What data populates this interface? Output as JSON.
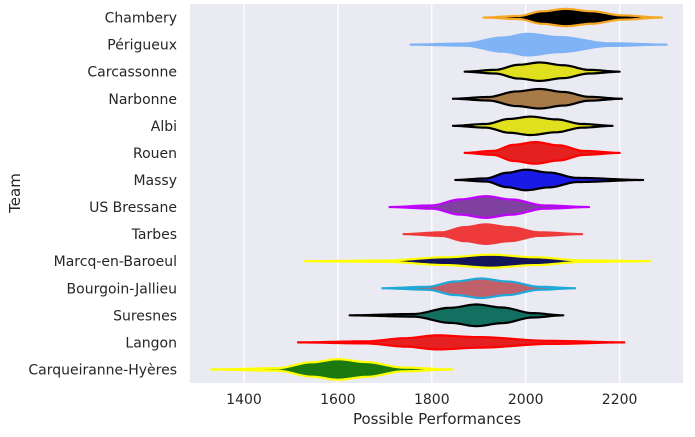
{
  "chart_data": {
    "type": "violin",
    "orientation": "horizontal",
    "xlabel": "Possible Performances",
    "ylabel": "Team",
    "xlim": [
      1285,
      2335
    ],
    "xticks": [
      1400,
      1600,
      1800,
      2000,
      2200
    ],
    "grid": true,
    "background": "#eaeaf2",
    "series": [
      {
        "name": "Chambery",
        "min": 1910,
        "max": 2290,
        "peak": 2085,
        "halfwidth": 0.32,
        "fill": "#000000",
        "edge": "#f5a623",
        "shape": [
          [
            1910,
            0
          ],
          [
            1985,
            0.18
          ],
          [
            2035,
            0.72
          ],
          [
            2085,
            1
          ],
          [
            2140,
            0.72
          ],
          [
            2205,
            0.25
          ],
          [
            2290,
            0
          ]
        ]
      },
      {
        "name": "Périgueux",
        "min": 1755,
        "max": 2300,
        "peak": 2005,
        "halfwidth": 0.4,
        "fill": "#7fb3f5",
        "edge": "#7fb3f5",
        "shape": [
          [
            1755,
            0
          ],
          [
            1870,
            0.1
          ],
          [
            1950,
            0.65
          ],
          [
            2005,
            1
          ],
          [
            2070,
            0.7
          ],
          [
            2180,
            0.12
          ],
          [
            2300,
            0
          ]
        ]
      },
      {
        "name": "Carcassonne",
        "min": 1870,
        "max": 2200,
        "peak": 2030,
        "halfwidth": 0.34,
        "fill": "#e0e01e",
        "edge": "#000000",
        "shape": [
          [
            1870,
            0
          ],
          [
            1935,
            0.2
          ],
          [
            1985,
            0.75
          ],
          [
            2030,
            1
          ],
          [
            2080,
            0.7
          ],
          [
            2135,
            0.2
          ],
          [
            2200,
            0
          ]
        ]
      },
      {
        "name": "Narbonne",
        "min": 1845,
        "max": 2205,
        "peak": 2030,
        "halfwidth": 0.36,
        "fill": "#a87a47",
        "edge": "#000000",
        "shape": [
          [
            1845,
            0
          ],
          [
            1920,
            0.18
          ],
          [
            1980,
            0.75
          ],
          [
            2030,
            1
          ],
          [
            2080,
            0.7
          ],
          [
            2135,
            0.2
          ],
          [
            2205,
            0
          ]
        ]
      },
      {
        "name": "Albi",
        "min": 1845,
        "max": 2185,
        "peak": 2010,
        "halfwidth": 0.34,
        "fill": "#e0e01e",
        "edge": "#000000",
        "shape": [
          [
            1845,
            0
          ],
          [
            1915,
            0.2
          ],
          [
            1965,
            0.75
          ],
          [
            2010,
            1
          ],
          [
            2065,
            0.7
          ],
          [
            2120,
            0.2
          ],
          [
            2185,
            0
          ]
        ]
      },
      {
        "name": "Rouen",
        "min": 1870,
        "max": 2200,
        "peak": 2020,
        "halfwidth": 0.4,
        "fill": "#e52020",
        "edge": "#ff0000",
        "shape": [
          [
            1870,
            0
          ],
          [
            1930,
            0.18
          ],
          [
            1975,
            0.75
          ],
          [
            2020,
            1
          ],
          [
            2070,
            0.7
          ],
          [
            2125,
            0.18
          ],
          [
            2200,
            0
          ]
        ]
      },
      {
        "name": "Massy",
        "min": 1850,
        "max": 2250,
        "peak": 2000,
        "halfwidth": 0.38,
        "fill": "#1a1ae6",
        "edge": "#000000",
        "shape": [
          [
            1850,
            0
          ],
          [
            1915,
            0.15
          ],
          [
            1960,
            0.7
          ],
          [
            2000,
            1
          ],
          [
            2050,
            0.72
          ],
          [
            2110,
            0.2
          ],
          [
            2250,
            0
          ]
        ]
      },
      {
        "name": "US Bressane",
        "min": 1710,
        "max": 2135,
        "peak": 1915,
        "halfwidth": 0.4,
        "fill": "#8040a0",
        "edge": "#c000ff",
        "shape": [
          [
            1710,
            0
          ],
          [
            1800,
            0.15
          ],
          [
            1860,
            0.7
          ],
          [
            1915,
            1
          ],
          [
            1970,
            0.7
          ],
          [
            2040,
            0.15
          ],
          [
            2135,
            0
          ]
        ]
      },
      {
        "name": "Tarbes",
        "min": 1740,
        "max": 2120,
        "peak": 1915,
        "halfwidth": 0.36,
        "fill": "#ee3a3a",
        "edge": "#ee3a3a",
        "shape": [
          [
            1740,
            0
          ],
          [
            1820,
            0.18
          ],
          [
            1870,
            0.72
          ],
          [
            1915,
            1
          ],
          [
            1965,
            0.72
          ],
          [
            2030,
            0.18
          ],
          [
            2120,
            0
          ]
        ]
      },
      {
        "name": "Marcq-en-Baroeul",
        "min": 1530,
        "max": 2265,
        "peak": 1925,
        "halfwidth": 0.24,
        "fill": "#14145a",
        "edge": "#ffff00",
        "shape": [
          [
            1530,
            0
          ],
          [
            1700,
            0.1
          ],
          [
            1830,
            0.6
          ],
          [
            1925,
            1
          ],
          [
            2020,
            0.6
          ],
          [
            2120,
            0.12
          ],
          [
            2265,
            0
          ]
        ]
      },
      {
        "name": "Bourgoin-Jallieu",
        "min": 1695,
        "max": 2105,
        "peak": 1905,
        "halfwidth": 0.36,
        "fill": "#c0606a",
        "edge": "#20a8d8",
        "shape": [
          [
            1695,
            0
          ],
          [
            1790,
            0.15
          ],
          [
            1850,
            0.7
          ],
          [
            1905,
            1
          ],
          [
            1960,
            0.7
          ],
          [
            2030,
            0.15
          ],
          [
            2105,
            0
          ]
        ]
      },
      {
        "name": "Suresnes",
        "min": 1625,
        "max": 2080,
        "peak": 1895,
        "halfwidth": 0.4,
        "fill": "#127060",
        "edge": "#000000",
        "shape": [
          [
            1625,
            0
          ],
          [
            1760,
            0.12
          ],
          [
            1840,
            0.7
          ],
          [
            1895,
            1
          ],
          [
            1950,
            0.72
          ],
          [
            2015,
            0.2
          ],
          [
            2080,
            0
          ]
        ]
      },
      {
        "name": "Langon",
        "min": 1515,
        "max": 2210,
        "peak": 1810,
        "halfwidth": 0.26,
        "fill": "#e52020",
        "edge": "#ff0000",
        "shape": [
          [
            1515,
            0
          ],
          [
            1660,
            0.15
          ],
          [
            1745,
            0.6
          ],
          [
            1810,
            1
          ],
          [
            1900,
            0.75
          ],
          [
            2050,
            0.22
          ],
          [
            2210,
            0
          ]
        ]
      },
      {
        "name": "Carqueiranne-Hyères",
        "min": 1330,
        "max": 1845,
        "peak": 1600,
        "halfwidth": 0.38,
        "fill": "#1a7a10",
        "edge": "#ffff00",
        "shape": [
          [
            1330,
            0
          ],
          [
            1470,
            0.12
          ],
          [
            1545,
            0.7
          ],
          [
            1600,
            1
          ],
          [
            1660,
            0.72
          ],
          [
            1740,
            0.18
          ],
          [
            1845,
            0
          ]
        ]
      }
    ]
  }
}
